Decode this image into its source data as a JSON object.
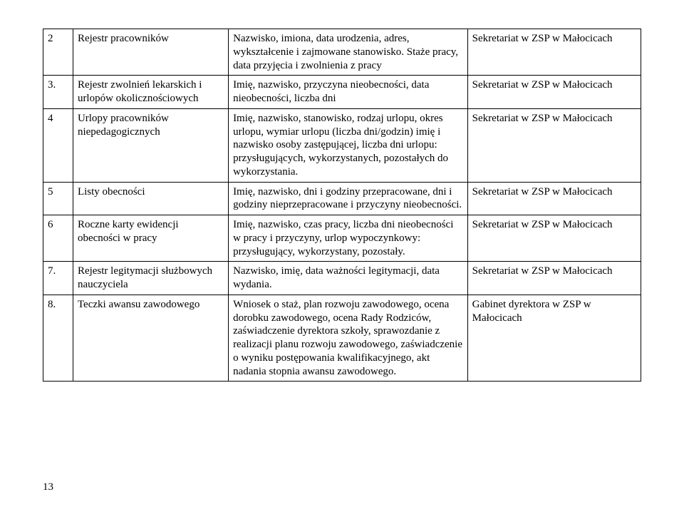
{
  "rows": [
    {
      "num": "2",
      "name": "Rejestr pracowników",
      "desc": "Nazwisko, imiona, data urodzenia, adres, wykształcenie i zajmowane stanowisko. Staże pracy, data przyjęcia i zwolnienia z pracy",
      "loc": "Sekretariat w ZSP w Małocicach"
    },
    {
      "num": "3.",
      "name": "Rejestr zwolnień lekarskich i urlopów okolicznościowych",
      "desc": "Imię, nazwisko, przyczyna nieobecności, data nieobecności, liczba dni",
      "loc": "Sekretariat w ZSP w Małocicach"
    },
    {
      "num": "4",
      "name": "Urlopy pracowników niepedagogicznych",
      "desc": "Imię, nazwisko, stanowisko, rodzaj  urlopu, okres urlopu, wymiar urlopu (liczba dni/godzin) imię i nazwisko osoby zastępującej, liczba dni urlopu: przysługujących, wykorzystanych, pozostałych do wykorzystania.",
      "loc": "Sekretariat w ZSP w Małocicach"
    },
    {
      "num": "5",
      "name": "Listy obecności",
      "desc": "Imię, nazwisko, dni i godziny przepracowane, dni i godziny nieprzepracowane i przyczyny nieobecności.",
      "loc": "Sekretariat w ZSP w Małocicach"
    },
    {
      "num": "6",
      "name": "Roczne karty ewidencji obecności w pracy",
      "desc": "Imię, nazwisko, czas pracy, liczba dni nieobecności w pracy i przyczyny, urlop wypoczynkowy: przysługujący, wykorzystany, pozostały.",
      "loc": "Sekretariat w ZSP w Małocicach"
    },
    {
      "num": "7.",
      "name": "Rejestr legitymacji służbowych nauczyciela",
      "desc": "Nazwisko, imię, data ważności legitymacji, data wydania.",
      "loc": "Sekretariat w ZSP w Małocicach"
    },
    {
      "num": "8.",
      "name": "Teczki awansu zawodowego",
      "desc": "Wniosek o staż, plan rozwoju zawodowego, ocena dorobku zawodowego, ocena Rady Rodziców, zaświadczenie dyrektora szkoły, sprawozdanie z realizacji planu rozwoju zawodowego, zaświadczenie o wyniku postępowania kwalifikacyjnego, akt nadania  stopnia awansu zawodowego.",
      "loc": "Gabinet dyrektora w ZSP w Małocicach"
    }
  ],
  "pageNumber": "13"
}
